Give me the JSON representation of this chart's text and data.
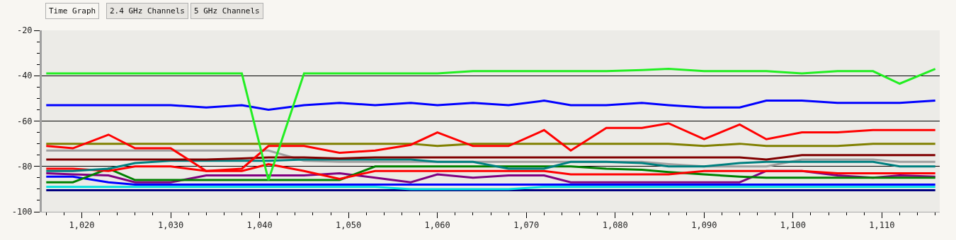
{
  "chart_data": {
    "type": "line",
    "annotations": [
      "Time Graph",
      "2.4 GHz Channels",
      "5 GHz Channels"
    ],
    "x": [
      1016,
      1019,
      1023,
      1026,
      1030,
      1034,
      1038,
      1041,
      1045,
      1049,
      1053,
      1057,
      1060,
      1064,
      1068,
      1072,
      1075,
      1079,
      1083,
      1086,
      1090,
      1094,
      1097,
      1101,
      1105,
      1109,
      1112,
      1116
    ],
    "xlim": [
      1015.5,
      1116.5
    ],
    "xticks": [
      {
        "value": 1020,
        "label": "1,020"
      },
      {
        "value": 1030,
        "label": "1,030"
      },
      {
        "value": 1040,
        "label": "1,040"
      },
      {
        "value": 1050,
        "label": "1,050"
      },
      {
        "value": 1060,
        "label": "1,060"
      },
      {
        "value": 1070,
        "label": "1,070"
      },
      {
        "value": 1080,
        "label": "1,080"
      },
      {
        "value": 1090,
        "label": "1,090"
      },
      {
        "value": 1100,
        "label": "1,100"
      },
      {
        "value": 1110,
        "label": "1,110"
      }
    ],
    "ylim": [
      -100,
      -20
    ],
    "yticks": [
      -100,
      -80,
      -60,
      -40,
      -20
    ],
    "grid": "y",
    "marker": "none",
    "line_style": "solid",
    "series": [
      {
        "color": "#000080",
        "values": [
          -90.5,
          -90.5,
          -90.5,
          -90.5,
          -90.5,
          -90.5,
          -90.5,
          -90.5,
          -90.5,
          -90.5,
          -90.5,
          -90.5,
          -90.5,
          -90.5,
          -90.5,
          -90.5,
          -90.5,
          -90.5,
          -90.5,
          -90.5,
          -90.5,
          -90.5,
          -90.5,
          -90.5,
          -90.5,
          -90.5,
          -90.5,
          -90.5
        ]
      },
      {
        "color": "#00e0e0",
        "values": [
          -89,
          -89,
          -89,
          -89,
          -89,
          -89,
          -89,
          -89,
          -89,
          -89,
          -89,
          -90,
          -90,
          -90,
          -90,
          -89,
          -89,
          -89,
          -89,
          -89,
          -89,
          -89,
          -89,
          -89,
          -89,
          -89,
          -89,
          -89
        ]
      },
      {
        "color": "#0000ff",
        "values": [
          -84.5,
          -84.5,
          -87,
          -88,
          -88,
          -88,
          -88,
          -88,
          -88,
          -88,
          -88,
          -88,
          -88,
          -88,
          -88,
          -88,
          -88,
          -88,
          -88,
          -88,
          -88,
          -88,
          -88,
          -88,
          -88,
          -88,
          -88,
          -88
        ]
      },
      {
        "color": "#800080",
        "values": [
          -83,
          -83.5,
          -84,
          -87,
          -87,
          -84,
          -84,
          -84,
          -84,
          -83,
          -85,
          -87,
          -83.5,
          -85,
          -84,
          -84,
          -87,
          -87,
          -87,
          -87,
          -87,
          -87,
          -82,
          -82,
          -84,
          -85,
          -84,
          -84.5
        ]
      },
      {
        "color": "#008000",
        "values": [
          -87,
          -87,
          -81,
          -86,
          -86,
          -86,
          -86,
          -86,
          -86,
          -86,
          -80,
          -80,
          -80,
          -80,
          -80,
          -80,
          -80,
          -81,
          -81.5,
          -82.5,
          -83.5,
          -84.5,
          -85,
          -85,
          -85,
          -85,
          -85,
          -85
        ]
      },
      {
        "color": "#ff0000",
        "values": [
          -81,
          -81,
          -82,
          -80,
          -80,
          -82,
          -82,
          -79,
          -82,
          -85.5,
          -82,
          -82,
          -82,
          -82,
          -82,
          -82,
          -83.5,
          -83.5,
          -83.5,
          -83.5,
          -82,
          -82,
          -82,
          -82,
          -83,
          -83,
          -83,
          -83
        ]
      },
      {
        "color": "#a0a0a0",
        "values": [
          -73,
          -73,
          -73,
          -73,
          -73,
          -73,
          -73,
          -73,
          -77.5,
          -78,
          -78,
          -78,
          -78,
          -78,
          -78,
          -78,
          -78,
          -78,
          -78,
          -79,
          -80,
          -80,
          -80,
          -77,
          -77,
          -77,
          -78,
          -78
        ]
      },
      {
        "color": "#008080",
        "values": [
          -82,
          -82,
          -81,
          -78.5,
          -77.5,
          -77.5,
          -77.5,
          -77.5,
          -77,
          -77,
          -77,
          -77,
          -78,
          -78,
          -81,
          -81,
          -78,
          -78,
          -78.5,
          -80,
          -80,
          -78.5,
          -78,
          -78,
          -78,
          -78,
          -80,
          -80
        ]
      },
      {
        "color": "#800000",
        "values": [
          -77,
          -77,
          -77,
          -77,
          -77,
          -77,
          -76.5,
          -76,
          -76,
          -76.5,
          -76,
          -76,
          -76,
          -76,
          -76,
          -76,
          -76,
          -76,
          -76,
          -76,
          -76,
          -76,
          -77,
          -75,
          -75,
          -75,
          -75,
          -75
        ]
      },
      {
        "color": "#808000",
        "values": [
          -70,
          -70,
          -70,
          -70,
          -70,
          -70,
          -70,
          -70,
          -70,
          -70,
          -70,
          -70,
          -71,
          -70,
          -70,
          -70,
          -70,
          -70,
          -70,
          -70,
          -71,
          -70,
          -71,
          -71,
          -71,
          -70,
          -70,
          -70
        ]
      },
      {
        "color": "#ff0000",
        "values": [
          -71,
          -72,
          -66,
          -72,
          -72,
          -82,
          -81,
          -71,
          -71,
          -74,
          -73,
          -70.5,
          -65,
          -71,
          -71,
          -64,
          -73,
          -63,
          -63,
          -61,
          -68,
          -61.5,
          -68,
          -65,
          -65,
          -64,
          -64,
          -64
        ]
      },
      {
        "color": "#0000ff",
        "values": [
          -53,
          -53,
          -53,
          -53,
          -53,
          -54,
          -53,
          -55,
          -53,
          -52,
          -53,
          -52,
          -53,
          -52,
          -53,
          -51,
          -53,
          -53,
          -52,
          -53,
          -54,
          -54,
          -51,
          -51,
          -52,
          -52,
          -52,
          -51
        ]
      },
      {
        "color": "#22ee22",
        "values": [
          -39,
          -39,
          -39,
          -39,
          -39,
          -39,
          -39,
          -86,
          -39,
          -39,
          -39,
          -39,
          -39,
          -38,
          -38,
          -38,
          -38,
          -38,
          -37.5,
          -37,
          -38,
          -38,
          -38,
          -39,
          -38,
          -38,
          -43.5,
          -37
        ]
      }
    ]
  }
}
